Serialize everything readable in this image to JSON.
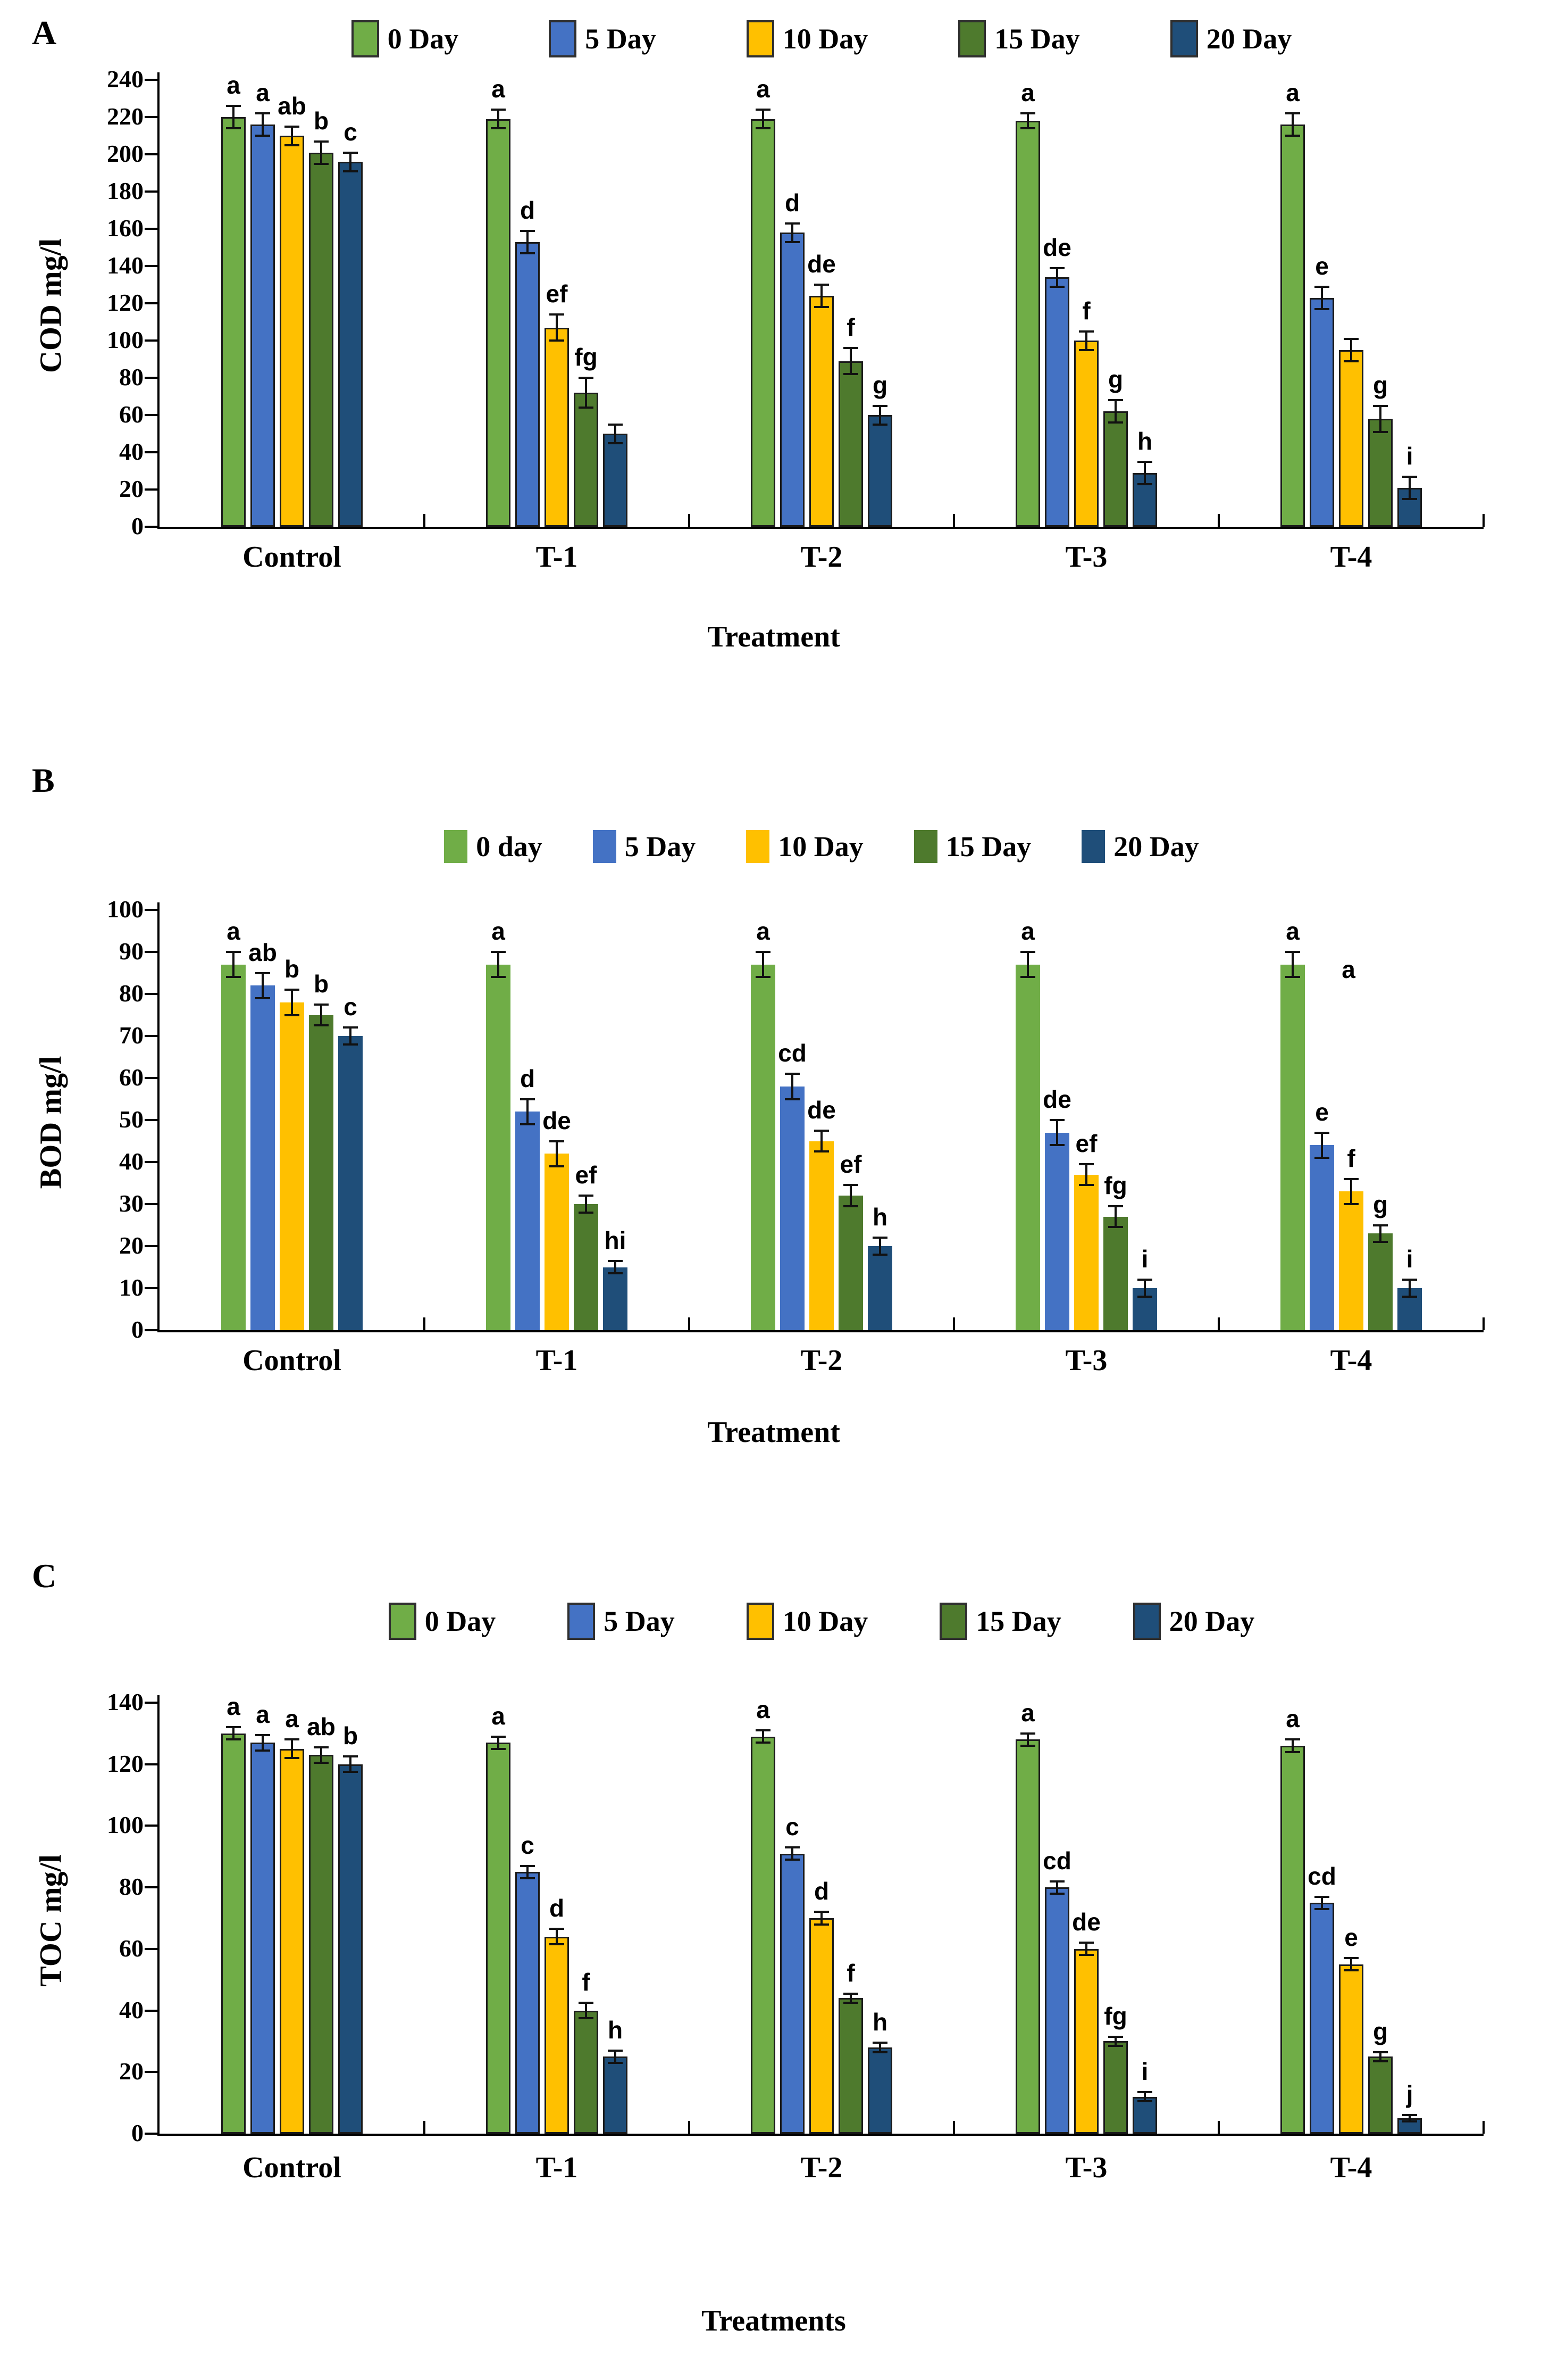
{
  "figure": {
    "series_colors": [
      "#70AD47",
      "#4472C4",
      "#FFC000",
      "#4E7A2D",
      "#1F4E79"
    ],
    "bar_outline_color": "#1b1b1b",
    "error_bar_color": "#111111"
  },
  "chart_data": [
    {
      "panel": "A",
      "type": "bar",
      "ylabel": "COD mg/l",
      "xlabel": "Treatment",
      "ylim": [
        0,
        240
      ],
      "ystep": 20,
      "grid": false,
      "legend_position": "top",
      "outlined_bars": true,
      "categories": [
        "Control",
        "T-1",
        "T-2",
        "T-3",
        "T-4"
      ],
      "legend": [
        "0 Day",
        "5 Day",
        "10 Day",
        "15 Day",
        "20 Day"
      ],
      "series": [
        {
          "name": "0 Day",
          "values": [
            220,
            219,
            219,
            218,
            216
          ],
          "errors": [
            6,
            5,
            5,
            4,
            6
          ],
          "letters": [
            "a",
            "a",
            "a",
            "a",
            "a"
          ]
        },
        {
          "name": "5 Day",
          "values": [
            216,
            153,
            158,
            134,
            123
          ],
          "errors": [
            6,
            6,
            5,
            5,
            6
          ],
          "letters": [
            "a",
            "d",
            "d",
            "de",
            "e"
          ]
        },
        {
          "name": "10 Day",
          "values": [
            210,
            107,
            124,
            100,
            95
          ],
          "errors": [
            5,
            7,
            6,
            5,
            6
          ],
          "letters": [
            "ab",
            "ef",
            "de",
            "f",
            ""
          ]
        },
        {
          "name": "15 Day",
          "values": [
            201,
            72,
            89,
            62,
            58
          ],
          "errors": [
            6,
            8,
            7,
            6,
            7
          ],
          "letters": [
            "b",
            "fg",
            "f",
            "g",
            "g"
          ]
        },
        {
          "name": "20 Day",
          "values": [
            196,
            50,
            60,
            29,
            21
          ],
          "errors": [
            5,
            5,
            5,
            6,
            6
          ],
          "letters": [
            "c",
            "",
            "g",
            "h",
            "i"
          ]
        }
      ],
      "extra_annotations": []
    },
    {
      "panel": "B",
      "type": "bar",
      "ylabel": "BOD mg/l",
      "xlabel": "Treatment",
      "ylim": [
        0,
        100
      ],
      "ystep": 10,
      "grid": false,
      "legend_position": "top",
      "outlined_bars": false,
      "categories": [
        "Control",
        "T-1",
        "T-2",
        "T-3",
        "T-4"
      ],
      "legend": [
        "0 day",
        "5 Day",
        "10 Day",
        "15 Day",
        "20 Day"
      ],
      "series": [
        {
          "name": "0 day",
          "values": [
            87,
            87,
            87,
            87,
            87
          ],
          "errors": [
            3,
            3,
            3,
            3,
            3
          ],
          "letters": [
            "a",
            "a",
            "a",
            "a",
            "a"
          ]
        },
        {
          "name": "5 Day",
          "values": [
            82,
            52,
            58,
            47,
            44
          ],
          "errors": [
            3,
            3,
            3,
            3,
            3
          ],
          "letters": [
            "ab",
            "d",
            "cd",
            "de",
            "e"
          ]
        },
        {
          "name": "10 Day",
          "values": [
            78,
            42,
            45,
            37,
            33
          ],
          "errors": [
            3,
            3,
            2.5,
            2.5,
            3
          ],
          "letters": [
            "b",
            "de",
            "de",
            "ef",
            "f"
          ]
        },
        {
          "name": "15 Day",
          "values": [
            75,
            30,
            32,
            27,
            23
          ],
          "errors": [
            2.5,
            2,
            2.5,
            2.5,
            2
          ],
          "letters": [
            "b",
            "ef",
            "ef",
            "fg",
            "g"
          ]
        },
        {
          "name": "20 Day",
          "values": [
            70,
            15,
            20,
            10,
            10
          ],
          "errors": [
            2,
            1.5,
            2,
            2,
            2
          ],
          "letters": [
            "c",
            "hi",
            "h",
            "i",
            "i"
          ]
        }
      ],
      "extra_annotations": [
        {
          "cluster": 4,
          "series": 0,
          "label": "a",
          "dx": 105,
          "dy": 72
        }
      ]
    },
    {
      "panel": "C",
      "type": "bar",
      "ylabel": "TOC mg/l",
      "xlabel": "Treatments",
      "ylim": [
        0,
        140
      ],
      "ystep": 20,
      "grid": false,
      "legend_position": "top",
      "outlined_bars": true,
      "categories": [
        "Control",
        "T-1",
        "T-2",
        "T-3",
        "T-4"
      ],
      "legend": [
        "0 Day",
        "5 Day",
        "10 Day",
        "15 Day",
        "20 Day"
      ],
      "series": [
        {
          "name": "0 Day",
          "values": [
            130,
            127,
            129,
            128,
            126
          ],
          "errors": [
            2,
            2,
            2,
            2,
            2
          ],
          "letters": [
            "a",
            "a",
            "a",
            "a",
            "a"
          ]
        },
        {
          "name": "5 Day",
          "values": [
            127,
            85,
            91,
            80,
            75
          ],
          "errors": [
            2.5,
            2,
            2,
            2,
            2
          ],
          "letters": [
            "a",
            "c",
            "c",
            "cd",
            "cd"
          ]
        },
        {
          "name": "10 Day",
          "values": [
            125,
            64,
            70,
            60,
            55
          ],
          "errors": [
            3,
            2.5,
            2,
            2,
            2
          ],
          "letters": [
            "a",
            "d",
            "d",
            "de",
            "e"
          ]
        },
        {
          "name": "15 Day",
          "values": [
            123,
            40,
            44,
            30,
            25
          ],
          "errors": [
            2.5,
            2.5,
            1.5,
            1.5,
            1.5
          ],
          "letters": [
            "ab",
            "f",
            "f",
            "fg",
            "g"
          ]
        },
        {
          "name": "20 Day",
          "values": [
            120,
            25,
            28,
            12,
            5
          ],
          "errors": [
            2.5,
            2,
            1.5,
            1.5,
            1
          ],
          "letters": [
            "b",
            "h",
            "h",
            "i",
            "j"
          ]
        }
      ],
      "extra_annotations": []
    }
  ]
}
